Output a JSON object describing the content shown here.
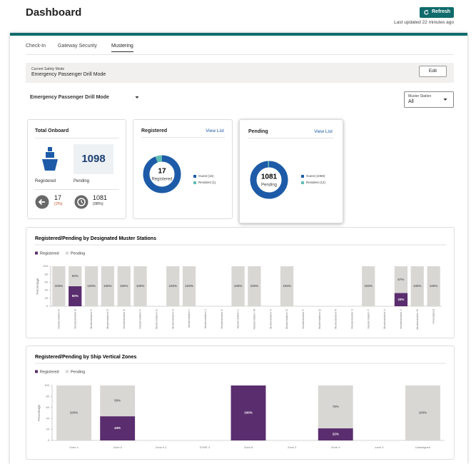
{
  "header": {
    "title": "Dashboard",
    "refresh": "Refresh",
    "last_updated": "Last updated 22 minutes ago"
  },
  "tabs": [
    "Check-In",
    "Gateway Security",
    "Mustering"
  ],
  "safety_mode": {
    "label": "Current Safety Mode",
    "value": "Emergency Passenger Drill Mode",
    "edit": "Edit"
  },
  "mode_select": "Emergency Passenger Drill Mode",
  "muster_filter": {
    "label": "Muster Station",
    "value": "All"
  },
  "total_onboard": {
    "title": "Total Onboard",
    "total": 1098,
    "registered_label": "Registered",
    "pending_label": "Pending",
    "registered": 17,
    "registered_pct": "(2%)",
    "pending": 1081,
    "pending_pct": "(98%)"
  },
  "registered_card": {
    "title": "Registered",
    "link": "View List",
    "total": 17,
    "center_label": "Registered",
    "segments": [
      {
        "name": "Guest (16)",
        "value": 16,
        "color": "#1d5ba8"
      },
      {
        "name": "Resident (1)",
        "value": 1,
        "color": "#62bdb5"
      }
    ]
  },
  "pending_card": {
    "title": "Pending",
    "link": "View List",
    "total": 1081,
    "center_label": "Pending",
    "segments": [
      {
        "name": "Guest (1069)",
        "value": 1069,
        "color": "#1d5ba8"
      },
      {
        "name": "Resident (12)",
        "value": 12,
        "color": "#62bdb5"
      }
    ]
  },
  "chart_data": [
    {
      "type": "bar",
      "stacked": true,
      "title": "Registered/Pending by Designated Muster Stations",
      "ylabel": "Percentage",
      "categories": [
        "Musterstation A",
        "Musterstation B",
        "Musterstation C",
        "Musterstation D",
        "Musterstation E",
        "Musterstation F",
        "Musterstation G",
        "Musterstation H",
        "Musterstation I",
        "Musterstation J",
        "Musterstation K",
        "Musterstation L",
        "Musterstation M",
        "Musterstation N",
        "Musterstation O",
        "Musterstation P",
        "Musterstation Q",
        "Musterstation R",
        "Musterstation S",
        "Musterstation T",
        "Musterstation U",
        "Musterstation V",
        "Musterstation W",
        "Unassigned"
      ],
      "series": [
        {
          "name": "Registered",
          "color": "#5a2d6e",
          "values": [
            0,
            50,
            0,
            0,
            0,
            0,
            null,
            0,
            0,
            null,
            null,
            0,
            0,
            null,
            0,
            null,
            null,
            null,
            null,
            0,
            null,
            33,
            0,
            0
          ],
          "value_labels": [
            null,
            "50%",
            null,
            null,
            null,
            null,
            null,
            null,
            null,
            null,
            null,
            null,
            null,
            null,
            null,
            null,
            null,
            null,
            null,
            null,
            null,
            "33%",
            null,
            null
          ]
        },
        {
          "name": "Pending",
          "color": "#d9d7d4",
          "values": [
            100,
            50,
            100,
            100,
            100,
            100,
            null,
            100,
            100,
            null,
            null,
            100,
            100,
            null,
            100,
            null,
            null,
            null,
            null,
            100,
            null,
            67,
            100,
            100
          ],
          "value_labels": [
            "100%",
            "50%",
            "100%",
            "100%",
            "100%",
            "100%",
            null,
            "100%",
            "100%",
            null,
            null,
            "100%",
            "100%",
            null,
            "100%",
            null,
            null,
            null,
            null,
            "100%",
            null,
            "67%",
            "100%",
            "100%"
          ]
        }
      ],
      "ylim": [
        0,
        100
      ],
      "yticks": [
        0,
        20,
        40,
        60,
        80,
        100
      ],
      "grid": false,
      "rotate_labels": true
    },
    {
      "type": "bar",
      "stacked": true,
      "title": "Registered/Pending by Ship Vertical Zones",
      "ylabel": "Percentage",
      "categories": [
        "Zone 4",
        "Zone 6",
        "Zone 6.1",
        "ZONE 4",
        "Zone 8",
        "Zone 2",
        "Zone 9",
        "zone 3",
        "Unassigned"
      ],
      "series": [
        {
          "name": "Registered",
          "color": "#5a2d6e",
          "values": [
            0,
            44,
            null,
            null,
            100,
            null,
            22,
            null,
            0
          ],
          "value_labels": [
            null,
            "44%",
            null,
            null,
            "100%",
            null,
            "22%",
            null,
            null
          ]
        },
        {
          "name": "Pending",
          "color": "#d9d7d4",
          "values": [
            100,
            56,
            null,
            null,
            0,
            null,
            78,
            null,
            100
          ],
          "value_labels": [
            "100%",
            "56%",
            null,
            null,
            null,
            null,
            "78%",
            null,
            "100%"
          ]
        }
      ],
      "ylim": [
        0,
        100
      ],
      "yticks": [
        0,
        20,
        40,
        60,
        80,
        100
      ],
      "grid": false,
      "rotate_labels": false
    }
  ]
}
